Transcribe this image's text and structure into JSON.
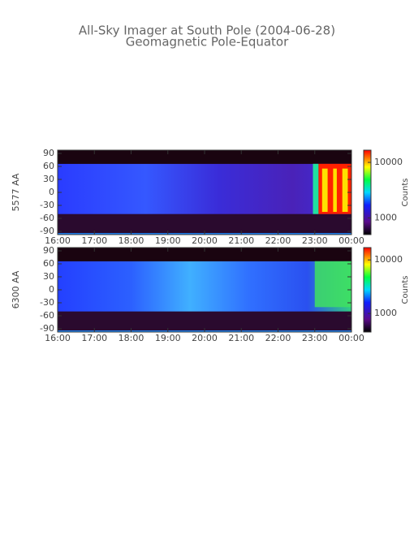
{
  "title": "All-Sky Imager at South Pole (2004-06-28)",
  "subtitle": "Geomagnetic Pole-Equator",
  "chart_data": [
    {
      "type": "heatmap",
      "ylabel": "5577 AA",
      "xlim": [
        16,
        24
      ],
      "xticks": [
        {
          "value": 16,
          "label": "16:00"
        },
        {
          "value": 17,
          "label": "17:00"
        },
        {
          "value": 18,
          "label": "18:00"
        },
        {
          "value": 19,
          "label": "19:00"
        },
        {
          "value": 20,
          "label": "20:00"
        },
        {
          "value": 21,
          "label": "21:00"
        },
        {
          "value": 22,
          "label": "22:00"
        },
        {
          "value": 23,
          "label": "23:00"
        },
        {
          "value": 24,
          "label": "00:00"
        }
      ],
      "ylim": [
        -97.5,
        97.5
      ],
      "yticks": [
        90,
        60,
        30,
        0,
        -30,
        -60,
        -90
      ],
      "colorbar": {
        "label": "Counts",
        "scale": "log",
        "lim": [
          500,
          16600
        ],
        "ticks": [
          10000,
          1000
        ]
      }
    },
    {
      "type": "heatmap",
      "ylabel": "6300 AA",
      "xlim": [
        16,
        24
      ],
      "xticks": [
        {
          "value": 16,
          "label": "16:00"
        },
        {
          "value": 17,
          "label": "17:00"
        },
        {
          "value": 18,
          "label": "18:00"
        },
        {
          "value": 19,
          "label": "19:00"
        },
        {
          "value": 20,
          "label": "20:00"
        },
        {
          "value": 21,
          "label": "21:00"
        },
        {
          "value": 22,
          "label": "22:00"
        },
        {
          "value": 23,
          "label": "23:00"
        },
        {
          "value": 24,
          "label": "00:00"
        }
      ],
      "ylim": [
        -97.5,
        97.5
      ],
      "yticks": [
        90,
        60,
        30,
        0,
        -30,
        -60,
        -90
      ],
      "colorbar": {
        "label": "Counts",
        "scale": "log",
        "lim": [
          450,
          17000
        ],
        "ticks": [
          10000,
          1000
        ]
      }
    }
  ]
}
